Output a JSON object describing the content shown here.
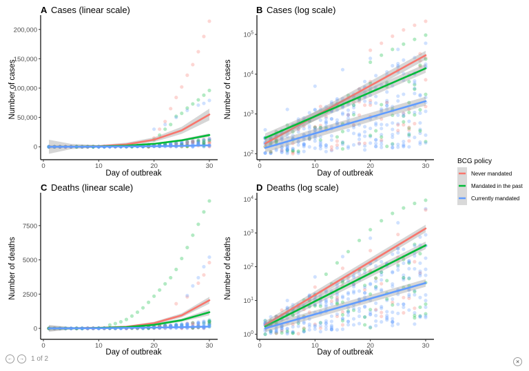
{
  "figure": {
    "legend": {
      "title": "BCG policy",
      "items": [
        {
          "label": "Never mandated",
          "color": "#F8766D"
        },
        {
          "label": "Mandated in the past",
          "color": "#00BA38"
        },
        {
          "label": "Currently mandated",
          "color": "#619CFF"
        }
      ],
      "placement": "right"
    }
  },
  "viewer": {
    "prev_icon": "arrow-left-icon",
    "next_icon": "arrow-right-icon",
    "page_label": "1 of 2",
    "close_icon": "close-icon",
    "prev_glyph": "←",
    "next_glyph": "→",
    "close_glyph": "✕"
  },
  "chart_data": [
    {
      "id": "A",
      "letter": "A",
      "title": "Cases (linear scale)",
      "type": "scatter",
      "yscale": "linear",
      "xlabel": "Day of outbreak",
      "ylabel": "Number of cases",
      "xlim": [
        0,
        31
      ],
      "ylim": [
        -22000,
        222000
      ],
      "xticks": [
        0,
        10,
        20,
        30
      ],
      "xtick_labels": [
        "0",
        "10",
        "20",
        "30"
      ],
      "yticks": [
        0,
        50000,
        100000,
        150000,
        200000
      ],
      "ytick_labels": [
        "0",
        "50,000",
        "100,000",
        "150,000",
        "200,000"
      ],
      "grid": false,
      "fits": [
        {
          "series": "Never mandated",
          "x": [
            1,
            5,
            10,
            15,
            20,
            25,
            30
          ],
          "y": [
            0,
            200,
            1000,
            4000,
            12000,
            28000,
            55000
          ],
          "band": [
            [
              -12000,
              12000
            ],
            [
              -4000,
              5000
            ],
            [
              -1000,
              3000
            ],
            [
              1000,
              7000
            ],
            [
              8000,
              16000
            ],
            [
              22000,
              34000
            ],
            [
              45000,
              65000
            ]
          ]
        },
        {
          "series": "Mandated in the past",
          "x": [
            1,
            5,
            10,
            15,
            20,
            25,
            30
          ],
          "y": [
            0,
            100,
            500,
            1800,
            5000,
            11000,
            20000
          ],
          "band": [
            [
              -3000,
              3000
            ],
            [
              -1000,
              1500
            ],
            [
              -500,
              1500
            ],
            [
              500,
              3000
            ],
            [
              3500,
              6500
            ],
            [
              9000,
              13000
            ],
            [
              17000,
              23000
            ]
          ]
        },
        {
          "series": "Currently mandated",
          "x": [
            1,
            5,
            10,
            15,
            20,
            25,
            30
          ],
          "y": [
            0,
            50,
            200,
            500,
            900,
            1500,
            2500
          ],
          "band": [
            [
              -800,
              800
            ],
            [
              -300,
              400
            ],
            [
              0,
              400
            ],
            [
              300,
              700
            ],
            [
              600,
              1200
            ],
            [
              1100,
              1900
            ],
            [
              1900,
              3100
            ]
          ]
        }
      ],
      "highlight_points": [
        {
          "series": "Never mandated",
          "x": [
            20,
            21,
            22,
            23,
            24,
            25,
            26,
            27,
            28,
            29,
            30
          ],
          "y": [
            15000,
            30000,
            43000,
            65000,
            84000,
            102000,
            122000,
            140000,
            162000,
            188000,
            214000
          ]
        },
        {
          "series": "Mandated in the past",
          "x": [
            20,
            21,
            22,
            23,
            24,
            25,
            26,
            27,
            28,
            29,
            30
          ],
          "y": [
            12000,
            20000,
            30000,
            38000,
            52000,
            57000,
            66000,
            73000,
            80000,
            88000,
            96000
          ]
        },
        {
          "series": "Currently mandated",
          "x": [
            20,
            22,
            24,
            26,
            28,
            29,
            30
          ],
          "y": [
            30000,
            38000,
            50000,
            62000,
            71000,
            74000,
            79000
          ]
        }
      ]
    },
    {
      "id": "B",
      "letter": "B",
      "title": "Cases (log scale)",
      "type": "scatter",
      "yscale": "log10",
      "xlabel": "Day of outbreak",
      "ylabel": "Number of cases",
      "xlim": [
        0,
        31
      ],
      "ylim_log10": [
        1.85,
        5.45
      ],
      "xticks": [
        0,
        10,
        20,
        30
      ],
      "xtick_labels": [
        "0",
        "10",
        "20",
        "30"
      ],
      "yticks_log10": [
        2,
        3,
        4,
        5
      ],
      "ytick_labels": [
        "10^2",
        "10^3",
        "10^4",
        "10^5"
      ],
      "grid": false,
      "fits": [
        {
          "series": "Never mandated",
          "x": [
            1,
            30
          ],
          "y": [
            180,
            30000
          ]
        },
        {
          "series": "Mandated in the past",
          "x": [
            1,
            30
          ],
          "y": [
            250,
            14000
          ]
        },
        {
          "series": "Currently mandated",
          "x": [
            1,
            30
          ],
          "y": [
            140,
            2100
          ]
        }
      ],
      "highlight_points": [
        {
          "series": "Never mandated",
          "x": [
            20,
            22,
            24,
            26,
            28,
            30
          ],
          "y": [
            40000,
            60000,
            90000,
            130000,
            170000,
            214000
          ]
        },
        {
          "series": "Mandated in the past",
          "x": [
            20,
            22,
            24,
            26,
            28,
            30
          ],
          "y": [
            20000,
            30000,
            42000,
            57000,
            75000,
            96000
          ]
        },
        {
          "series": "Currently mandated",
          "x": [
            1,
            5,
            10,
            15,
            20,
            25,
            30
          ],
          "y": [
            400,
            1300,
            5000,
            13000,
            25000,
            42000,
            60000
          ]
        }
      ]
    },
    {
      "id": "C",
      "letter": "C",
      "title": "Deaths (linear scale)",
      "type": "scatter",
      "yscale": "linear",
      "xlabel": "Day of outbreak",
      "ylabel": "Number of deaths",
      "xlim": [
        0,
        31
      ],
      "ylim": [
        -800,
        9800
      ],
      "xticks": [
        0,
        10,
        20,
        30
      ],
      "xtick_labels": [
        "0",
        "10",
        "20",
        "30"
      ],
      "yticks": [
        0,
        2500,
        5000,
        7500
      ],
      "ytick_labels": [
        "0",
        "2500",
        "5000",
        "7500"
      ],
      "grid": false,
      "fits": [
        {
          "series": "Never mandated",
          "x": [
            1,
            5,
            10,
            15,
            20,
            25,
            30
          ],
          "y": [
            0,
            10,
            40,
            120,
            380,
            950,
            2050
          ],
          "band": [
            [
              -250,
              250
            ],
            [
              -80,
              100
            ],
            [
              -30,
              110
            ],
            [
              60,
              180
            ],
            [
              280,
              480
            ],
            [
              800,
              1100
            ],
            [
              1800,
              2300
            ]
          ]
        },
        {
          "series": "Mandated in the past",
          "x": [
            1,
            5,
            10,
            15,
            20,
            25,
            30
          ],
          "y": [
            0,
            8,
            30,
            90,
            260,
            600,
            1180
          ],
          "band": [
            [
              -200,
              200
            ],
            [
              -60,
              80
            ],
            [
              -20,
              80
            ],
            [
              40,
              140
            ],
            [
              180,
              340
            ],
            [
              480,
              720
            ],
            [
              950,
              1400
            ]
          ]
        },
        {
          "series": "Currently mandated",
          "x": [
            1,
            5,
            10,
            15,
            20,
            25,
            30
          ],
          "y": [
            0,
            5,
            15,
            35,
            60,
            90,
            130
          ],
          "band": [
            [
              -60,
              60
            ],
            [
              -20,
              30
            ],
            [
              0,
              30
            ],
            [
              20,
              50
            ],
            [
              40,
              80
            ],
            [
              65,
              115
            ],
            [
              95,
              165
            ]
          ]
        }
      ],
      "highlight_points": [
        {
          "series": "Mandated in the past",
          "x": [
            12,
            13,
            14,
            15,
            16,
            17,
            18,
            19,
            20,
            21,
            22,
            23,
            24,
            25,
            26,
            27,
            28,
            29,
            30
          ],
          "y": [
            250,
            350,
            480,
            650,
            900,
            1180,
            1500,
            1900,
            2350,
            2800,
            3250,
            3700,
            4300,
            5100,
            5900,
            6800,
            7600,
            8500,
            9300
          ]
        },
        {
          "series": "Never mandated",
          "x": [
            24,
            26,
            28,
            29,
            30
          ],
          "y": [
            1800,
            2300,
            3300,
            3900,
            4800
          ]
        },
        {
          "series": "Currently mandated",
          "x": [
            26,
            27,
            28,
            29,
            30
          ],
          "y": [
            2400,
            3100,
            3700,
            4500,
            5200
          ]
        }
      ]
    },
    {
      "id": "D",
      "letter": "D",
      "title": "Deaths (log scale)",
      "type": "scatter",
      "yscale": "log10",
      "xlabel": "Day of outbreak",
      "ylabel": "Number of deaths",
      "xlim": [
        0,
        31
      ],
      "ylim_log10": [
        -0.15,
        4.15
      ],
      "xticks": [
        0,
        10,
        20,
        30
      ],
      "xtick_labels": [
        "0",
        "10",
        "20",
        "30"
      ],
      "yticks_log10": [
        0,
        1,
        2,
        3,
        4
      ],
      "ytick_labels": [
        "10^0",
        "10^1",
        "10^2",
        "10^3",
        "10^4"
      ],
      "grid": false,
      "fits": [
        {
          "series": "Never mandated",
          "x": [
            1,
            30
          ],
          "y": [
            1.9,
            1350
          ]
        },
        {
          "series": "Mandated in the past",
          "x": [
            1,
            30
          ],
          "y": [
            1.7,
            430
          ]
        },
        {
          "series": "Currently mandated",
          "x": [
            1,
            30
          ],
          "y": [
            1.5,
            33
          ]
        }
      ],
      "highlight_points": [
        {
          "series": "Mandated in the past",
          "x": [
            12,
            14,
            16,
            18,
            20,
            22,
            24,
            26,
            28,
            30
          ],
          "y": [
            60,
            130,
            280,
            600,
            1250,
            2300,
            3800,
            5500,
            7500,
            9300
          ]
        },
        {
          "series": "Currently mandated",
          "x": [
            5,
            10,
            15,
            20,
            25,
            30
          ],
          "y": [
            10,
            50,
            200,
            700,
            2000,
            5200
          ]
        },
        {
          "series": "Never mandated",
          "x": [
            10,
            15,
            20,
            25,
            30
          ],
          "y": [
            25,
            90,
            300,
            900,
            4800
          ]
        }
      ]
    }
  ]
}
